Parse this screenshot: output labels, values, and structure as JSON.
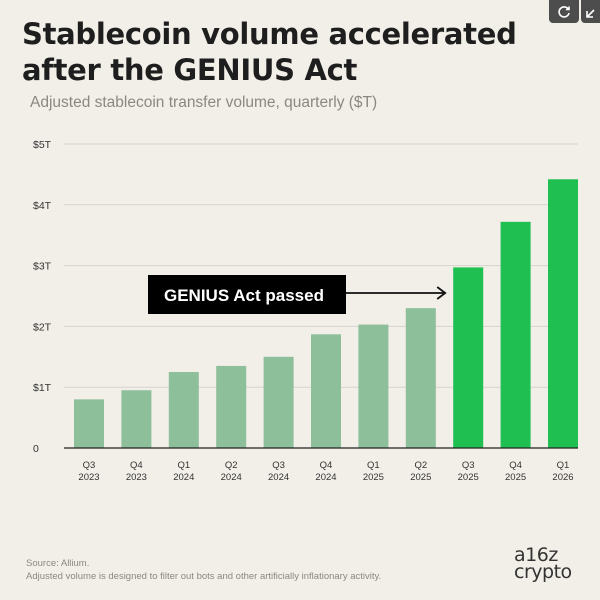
{
  "title": "Stablecoin volume accelerated after the GENIUS Act",
  "subtitle": "Adjusted stablecoin transfer volume, quarterly ($T)",
  "source": "Source: Allium.",
  "footnote": "Adjusted volume is designed to filter out bots and other artificially inflationary activity.",
  "logo": {
    "line1": "a16z",
    "line2": "crypto"
  },
  "icons": {
    "refresh": "refresh-icon",
    "expand": "expand-icon"
  },
  "colors": {
    "before": "#8dbf9b",
    "after": "#1fbf52",
    "annotation_bg": "#000000",
    "annotation_text": "#ffffff",
    "gridline": "#d6d3cc",
    "baseline": "#222222"
  },
  "chart_data": {
    "type": "bar",
    "title": "Stablecoin volume accelerated after the GENIUS Act",
    "subtitle": "Adjusted stablecoin transfer volume, quarterly ($T)",
    "xlabel": "",
    "ylabel": "",
    "categories": [
      [
        "Q3",
        "2023"
      ],
      [
        "Q4",
        "2023"
      ],
      [
        "Q1",
        "2024"
      ],
      [
        "Q2",
        "2024"
      ],
      [
        "Q3",
        "2024"
      ],
      [
        "Q4",
        "2024"
      ],
      [
        "Q1",
        "2025"
      ],
      [
        "Q2",
        "2025"
      ],
      [
        "Q3",
        "2025"
      ],
      [
        "Q4",
        "2025"
      ],
      [
        "Q1",
        "2026"
      ]
    ],
    "values": [
      0.8,
      0.95,
      1.25,
      1.35,
      1.5,
      1.87,
      2.03,
      2.3,
      2.97,
      3.72,
      4.42
    ],
    "highlight_from_index": 8,
    "ylim": [
      0,
      5
    ],
    "yticks": [
      {
        "value": 0,
        "label": "0"
      },
      {
        "value": 1,
        "label": "$1T"
      },
      {
        "value": 2,
        "label": "$2T"
      },
      {
        "value": 3,
        "label": "$3T"
      },
      {
        "value": 4,
        "label": "$4T"
      },
      {
        "value": 5,
        "label": "$5T"
      }
    ],
    "grid": true,
    "annotation": {
      "text": "GENIUS Act passed",
      "points_to_index": 8
    }
  }
}
